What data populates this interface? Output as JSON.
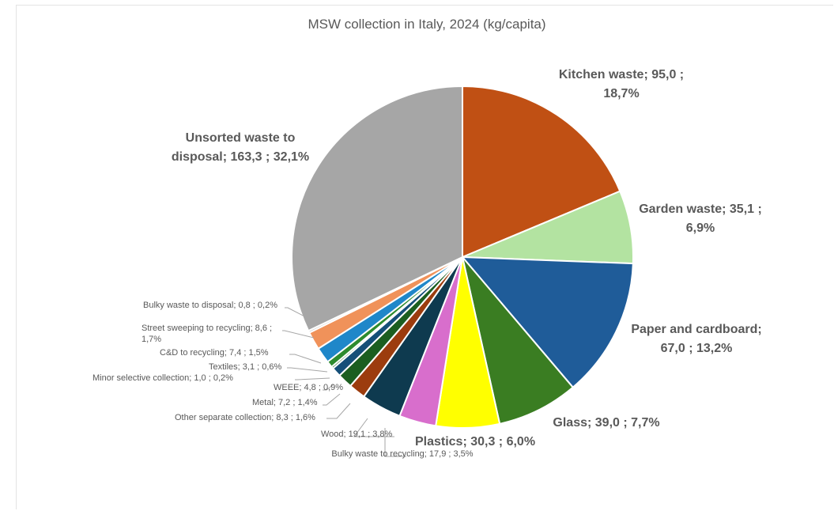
{
  "chart_data": {
    "type": "pie",
    "title": "MSW collection in Italy, 2024 (kg/capita)",
    "slices": [
      {
        "name": "Kitchen waste",
        "value": "95,0",
        "percent": "18,7%",
        "pct": 18.7,
        "color": "#c05014",
        "label_lines": [
          "Kitchen waste;  95,0 ;",
          "18,7%"
        ]
      },
      {
        "name": "Garden waste",
        "value": "35,1",
        "percent": "6,9%",
        "pct": 6.9,
        "color": "#b3e3a1",
        "label_lines": [
          "Garden waste;  35,1 ;",
          "6,9%"
        ]
      },
      {
        "name": "Paper and cardboard",
        "value": "67,0",
        "percent": "13,2%",
        "pct": 13.2,
        "color": "#1f5c99",
        "label_lines": [
          "Paper and cardboard;",
          "67,0 ; 13,2%"
        ]
      },
      {
        "name": "Glass",
        "value": "39,0",
        "percent": "7,7%",
        "pct": 7.7,
        "color": "#3a7d22",
        "label_lines": [
          "Glass;  39,0 ; 7,7%"
        ]
      },
      {
        "name": "Plastics",
        "value": "30,3",
        "percent": "6,0%",
        "pct": 6.0,
        "color": "#ffff00",
        "label_lines": [
          "Plastics;  30,3 ; 6,0%"
        ]
      },
      {
        "name": "Bulky waste to recycling",
        "value": "17,9",
        "percent": "3,5%",
        "pct": 3.5,
        "color": "#d86ecc",
        "label_lines": [
          "Bulky waste to recycling; 17,9 ; 3,5%"
        ]
      },
      {
        "name": "Wood",
        "value": "19,1",
        "percent": "3,8%",
        "pct": 3.8,
        "color": "#0e3a4f",
        "label_lines": [
          "Wood;  19,1 ; 3,8%"
        ]
      },
      {
        "name": "Other separate collection",
        "value": "8,3",
        "percent": "1,6%",
        "pct": 1.6,
        "color": "#9c3c0e",
        "label_lines": [
          "Other separate collection;  8,3 ; 1,6%"
        ]
      },
      {
        "name": "Metal",
        "value": "7,2",
        "percent": "1,4%",
        "pct": 1.4,
        "color": "#1b5e20",
        "label_lines": [
          "Metal;  7,2 ; 1,4%"
        ]
      },
      {
        "name": "WEEE",
        "value": "4,8",
        "percent": "0,9%",
        "pct": 0.9,
        "color": "#154f78",
        "label_lines": [
          "WEEE;  4,8 ; 0,9%"
        ]
      },
      {
        "name": "Minor selective collection",
        "value": "1,0",
        "percent": "0,2%",
        "pct": 0.2,
        "color": "#2a6f2a",
        "label_lines": [
          "Minor selective collection;  1,0 ; 0,2%"
        ]
      },
      {
        "name": "Textiles",
        "value": "3,1",
        "percent": "0,6%",
        "pct": 0.6,
        "color": "#2e8b2e",
        "label_lines": [
          "Textiles;  3,1 ; 0,6%"
        ]
      },
      {
        "name": "C&D to recycling",
        "value": "7,4",
        "percent": "1,5%",
        "pct": 1.5,
        "color": "#1f87c9",
        "label_lines": [
          "C&D to recycling;  7,4 ; 1,5%"
        ]
      },
      {
        "name": "Street sweeping to recycling",
        "value": "8,6",
        "percent": "1,7%",
        "pct": 1.7,
        "color": "#f0925a",
        "label_lines": [
          "Street sweeping to recycling;  8,6 ;",
          "1,7%"
        ]
      },
      {
        "name": "Bulky waste to disposal",
        "value": "0,8",
        "percent": "0,2%",
        "pct": 0.2,
        "color": "#c9c9c9",
        "label_lines": [
          "Bulky waste to disposal;  0,8 ; 0,2%"
        ]
      },
      {
        "name": "Unsorted waste to disposal",
        "value": "163,3",
        "percent": "32,1%",
        "pct": 32.1,
        "color": "#a6a6a6",
        "label_lines": [
          "Unsorted waste to",
          "disposal;  163,3 ; 32,1%"
        ]
      }
    ],
    "legend": "none",
    "data_labels": "category; value; percentage"
  }
}
